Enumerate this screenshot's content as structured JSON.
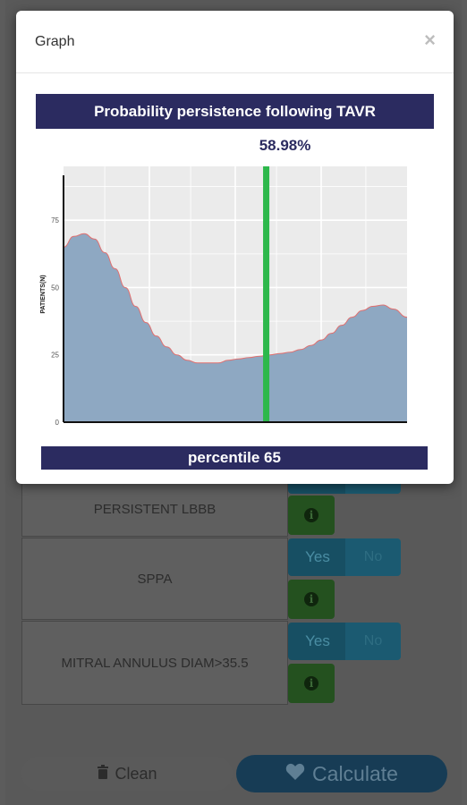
{
  "modal": {
    "title": "Graph",
    "close_symbol": "×"
  },
  "background": {
    "rows": [
      {
        "label": "PERSISTENT LBBB"
      },
      {
        "label": "SPPA",
        "yes_label": "Yes",
        "no_label": "No"
      },
      {
        "label": "MITRAL ANNULUS DIAM>35.5",
        "yes_label": "Yes",
        "no_label": "No"
      }
    ],
    "clean_label": "Clean",
    "calculate_label": "Calculate"
  },
  "colors": {
    "title_bar": "#2b2b60",
    "marker_line": "#2db84b",
    "area_fill": "#8ea8c2",
    "area_stroke": "#e07070",
    "panel_bg": "#ebebeb"
  },
  "chart_data": {
    "type": "area",
    "title": "Probability persistence following TAVR",
    "ylabel": "PATIENTS(N)",
    "xlabel": "",
    "yticks": [
      "0",
      "25",
      "50",
      "75"
    ],
    "ylim": [
      0,
      95
    ],
    "xlim": [
      0,
      100
    ],
    "marker": {
      "x": 59,
      "label": "58.98%"
    },
    "footer": "percentile 65",
    "series": [
      {
        "x": [
          0,
          3,
          6,
          9,
          12,
          15,
          18,
          21,
          24,
          27,
          30,
          33,
          36,
          39,
          42,
          45,
          48,
          51,
          54,
          57,
          60,
          63,
          66,
          69,
          72,
          75,
          78,
          81,
          84,
          87,
          90,
          93,
          96,
          100
        ],
        "values": [
          65,
          69,
          70,
          68,
          63,
          57,
          50,
          43,
          37,
          32,
          28,
          25,
          23,
          22,
          22,
          22,
          23,
          23.5,
          24,
          24.5,
          25,
          25.5,
          26,
          27,
          28.5,
          30.5,
          33,
          36,
          39,
          41.5,
          43,
          43.5,
          42,
          39
        ]
      }
    ]
  }
}
